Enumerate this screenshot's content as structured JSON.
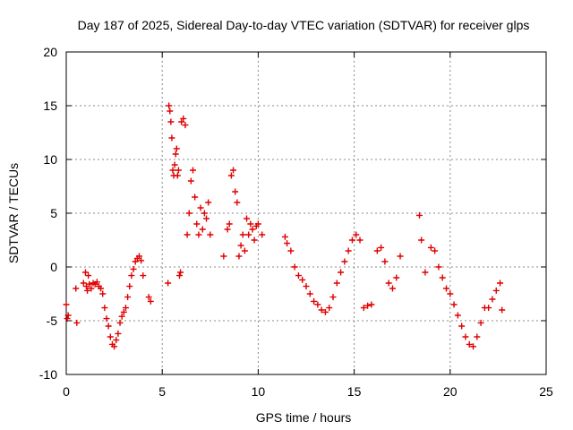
{
  "chart_data": {
    "type": "scatter",
    "title": "Day 187 of 2025, Sidereal Day-to-day VTEC variation (SDTVAR) for receiver glps",
    "xlabel": "GPS time / hours",
    "ylabel": "SDTVAR / TECUs",
    "xlim": [
      0,
      25
    ],
    "ylim": [
      -10,
      20
    ],
    "xticks": [
      0,
      5,
      10,
      15,
      20,
      25
    ],
    "yticks": [
      -10,
      -5,
      0,
      5,
      10,
      15,
      20
    ],
    "grid": true,
    "marker": "+",
    "series": [
      {
        "name": "SDTVAR",
        "color": "#e00000",
        "x": [
          0.0,
          0.05,
          0.1,
          0.5,
          0.55,
          0.9,
          1.0,
          1.05,
          1.1,
          1.15,
          1.2,
          1.3,
          1.4,
          1.5,
          1.6,
          1.7,
          1.8,
          1.9,
          2.0,
          2.1,
          2.2,
          2.3,
          2.4,
          2.5,
          2.6,
          2.7,
          2.8,
          2.9,
          3.0,
          3.1,
          3.2,
          3.3,
          3.4,
          3.5,
          3.6,
          3.7,
          3.8,
          3.9,
          4.0,
          4.3,
          4.4,
          5.3,
          5.35,
          5.4,
          5.45,
          5.5,
          5.55,
          5.6,
          5.65,
          5.7,
          5.75,
          5.8,
          5.85,
          5.9,
          5.95,
          6.0,
          6.1,
          6.2,
          6.3,
          6.4,
          6.5,
          6.6,
          6.7,
          6.8,
          6.9,
          7.0,
          7.1,
          7.2,
          7.3,
          7.4,
          7.5,
          8.2,
          8.4,
          8.5,
          8.6,
          8.7,
          8.8,
          8.9,
          9.0,
          9.1,
          9.2,
          9.3,
          9.4,
          9.5,
          9.6,
          9.7,
          9.8,
          9.9,
          10.0,
          10.2,
          11.4,
          11.5,
          11.7,
          11.9,
          12.1,
          12.3,
          12.5,
          12.7,
          12.9,
          13.1,
          13.3,
          13.5,
          13.7,
          13.9,
          14.1,
          14.3,
          14.5,
          14.7,
          14.9,
          15.1,
          15.3,
          15.5,
          15.7,
          15.9,
          16.2,
          16.4,
          16.6,
          16.8,
          17.0,
          17.2,
          17.4,
          18.4,
          18.5,
          18.7,
          19.0,
          19.2,
          19.4,
          19.6,
          19.8,
          20.0,
          20.2,
          20.4,
          20.6,
          20.8,
          21.0,
          21.2,
          21.4,
          21.6,
          21.8,
          22.0,
          22.2,
          22.4,
          22.6,
          22.7
        ],
        "y": [
          -3.5,
          -4.8,
          -4.5,
          -2.0,
          -5.2,
          -1.5,
          -0.5,
          -1.8,
          -2.2,
          -0.8,
          -1.6,
          -2.0,
          -1.5,
          -1.6,
          -1.4,
          -1.8,
          -2.0,
          -2.5,
          -3.8,
          -4.8,
          -5.5,
          -6.5,
          -7.2,
          -7.4,
          -6.8,
          -6.2,
          -5.2,
          -4.6,
          -4.2,
          -3.8,
          -2.8,
          -1.8,
          -0.8,
          -0.2,
          0.5,
          0.8,
          1.0,
          0.6,
          -0.8,
          -2.8,
          -3.2,
          -1.5,
          15.0,
          14.5,
          13.5,
          12.0,
          9.0,
          8.5,
          9.5,
          10.5,
          11.0,
          8.5,
          9.0,
          -0.8,
          -0.5,
          13.5,
          13.8,
          13.2,
          3.0,
          5.0,
          8.0,
          9.0,
          6.5,
          4.0,
          3.0,
          5.5,
          3.5,
          5.0,
          4.5,
          6.0,
          3.0,
          1.0,
          3.5,
          4.0,
          8.5,
          9.0,
          7.0,
          6.0,
          1.0,
          2.0,
          3.0,
          1.5,
          4.5,
          3.0,
          4.0,
          3.5,
          2.5,
          3.8,
          4.0,
          3.0,
          2.8,
          2.2,
          1.5,
          0.0,
          -0.8,
          -1.2,
          -1.8,
          -2.5,
          -3.2,
          -3.5,
          -4.0,
          -4.2,
          -3.8,
          -2.8,
          -1.5,
          -0.5,
          0.5,
          1.5,
          2.5,
          3.0,
          2.5,
          -3.8,
          -3.6,
          -3.5,
          1.5,
          1.8,
          0.5,
          -1.5,
          -2.0,
          -1.0,
          1.0,
          4.8,
          2.5,
          -0.5,
          1.8,
          1.5,
          0.0,
          -1.0,
          -2.0,
          -2.5,
          -3.5,
          -4.5,
          -5.5,
          -6.5,
          -7.2,
          -7.4,
          -6.5,
          -5.2,
          -3.8,
          -3.8,
          -3.0,
          -2.2,
          -1.5,
          -4.0
        ]
      }
    ]
  }
}
